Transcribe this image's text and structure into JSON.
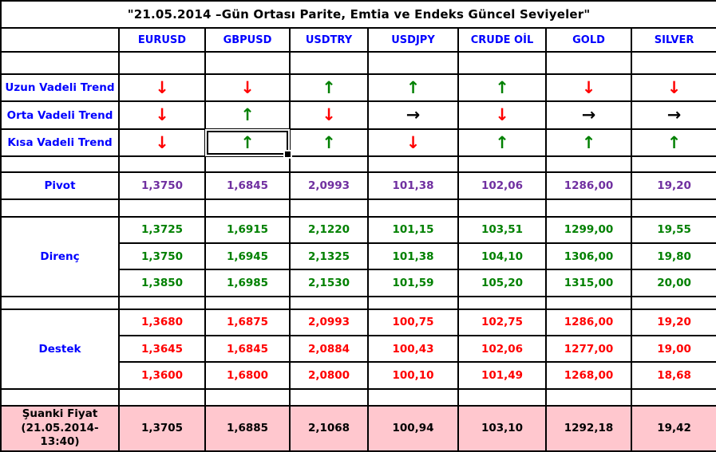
{
  "title": "\"21.05.2014 –Gün Ortası Parite, Emtia ve Endeks Güncel Seviyeler\"",
  "columns": [
    "EURUSD",
    "GBPUSD",
    "USDTRY",
    "USDJPY",
    "CRUDE OİL",
    "GOLD",
    "SILVER"
  ],
  "trend_icons": {
    "up": "↑",
    "down": "↓",
    "right": "→"
  },
  "trend_rows": [
    {
      "id": "uzun-vadeli-trend",
      "label": "Uzun Vadeli Trend",
      "trends": [
        "down",
        "down",
        "up",
        "up",
        "up",
        "down",
        "down"
      ]
    },
    {
      "id": "orta-vadeli-trend",
      "label": "Orta Vadeli Trend",
      "trends": [
        "down",
        "up",
        "down",
        "right",
        "down",
        "right",
        "right"
      ]
    },
    {
      "id": "kisa-vadeli-trend",
      "label": "Kısa Vadeli Trend",
      "trends": [
        "down",
        "up",
        "up",
        "down",
        "up",
        "up",
        "up"
      ]
    }
  ],
  "pivot_row": {
    "label": "Pivot",
    "values": [
      "1,3750",
      "1,6845",
      "2,0993",
      "101,38",
      "102,06",
      "1286,00",
      "19,20"
    ]
  },
  "resistance_block": {
    "label": "Direnç",
    "rows": [
      [
        "1,3725",
        "1,6915",
        "2,1220",
        "101,15",
        "103,51",
        "1299,00",
        "19,55"
      ],
      [
        "1,3750",
        "1,6945",
        "2,1325",
        "101,38",
        "104,10",
        "1306,00",
        "19,80"
      ],
      [
        "1,3850",
        "1,6985",
        "2,1530",
        "101,59",
        "105,20",
        "1315,00",
        "20,00"
      ]
    ]
  },
  "support_block": {
    "label": "Destek",
    "rows": [
      [
        "1,3680",
        "1,6875",
        "2,0993",
        "100,75",
        "102,75",
        "1286,00",
        "19,20"
      ],
      [
        "1,3645",
        "1,6845",
        "2,0884",
        "100,43",
        "102,06",
        "1277,00",
        "19,00"
      ],
      [
        "1,3600",
        "1,6800",
        "2,0800",
        "100,10",
        "101,49",
        "1268,00",
        "18,68"
      ]
    ]
  },
  "current_price_row": {
    "label": "Şuanki Fiyat\n(21.05.2014-\n13:40)",
    "values": [
      "1,3705",
      "1,6885",
      "2,1068",
      "100,94",
      "103,10",
      "1292,18",
      "19,42"
    ]
  },
  "selected_cell": {
    "row": "kisa-vadeli-trend",
    "column": "GBPUSD"
  },
  "colors": {
    "label_blue": "#0000ff",
    "pivot_purple": "#7030a0",
    "resistance_green": "#008000",
    "support_red": "#ff0000",
    "trend_up_green": "#008000",
    "trend_down_red": "#ff0000",
    "trend_flat_black": "#000000",
    "current_row_pink": "#ffc7ce",
    "border_black": "#000000"
  }
}
